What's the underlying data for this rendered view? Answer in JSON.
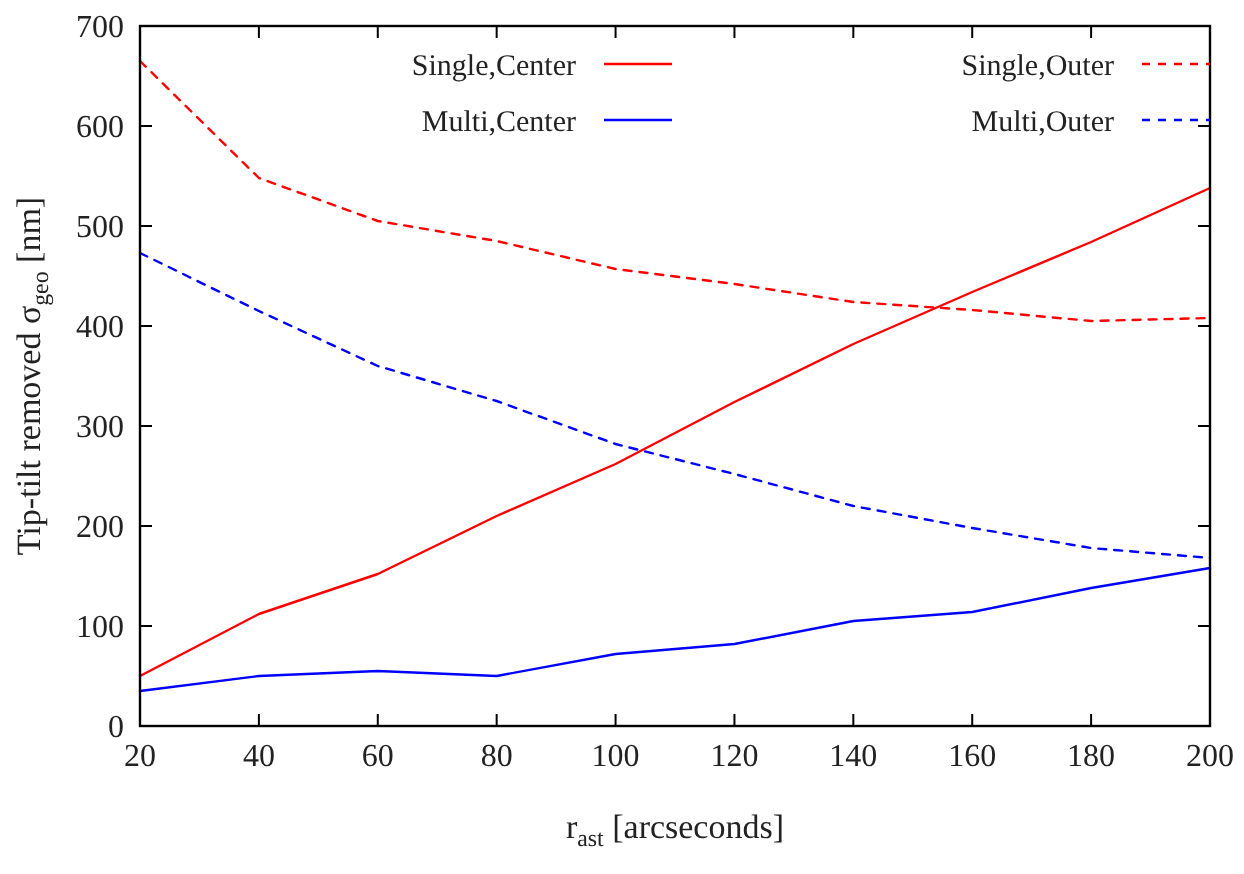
{
  "chart_data": {
    "type": "line",
    "xlabel": "r$_{ast}$ [arcseconds]",
    "ylabel": "Tip-tilt removed σ$_{geo}$ [nm]",
    "x": [
      20,
      40,
      60,
      80,
      100,
      120,
      140,
      160,
      180,
      200
    ],
    "xlim": [
      20,
      200
    ],
    "xticks": [
      20,
      40,
      60,
      80,
      100,
      120,
      140,
      160,
      180,
      200
    ],
    "ylim": [
      0,
      700
    ],
    "yticks": [
      0,
      100,
      200,
      300,
      400,
      500,
      600,
      700
    ],
    "grid": false,
    "legend": "top",
    "marker": "none",
    "series": [
      {
        "name": "Single,Center",
        "color": "#ff0000",
        "line_style": "solid",
        "values": [
          50,
          112,
          152,
          210,
          262,
          324,
          382,
          434,
          484,
          538
        ]
      },
      {
        "name": "Single,Outer",
        "color": "#ff0000",
        "line_style": "dashed",
        "values": [
          665,
          548,
          505,
          485,
          457,
          442,
          424,
          416,
          405,
          408
        ]
      },
      {
        "name": "Multi,Center",
        "color": "#0000ff",
        "line_style": "solid",
        "values": [
          35,
          50,
          55,
          50,
          72,
          82,
          105,
          114,
          138,
          158
        ]
      },
      {
        "name": "Multi,Outer",
        "color": "#0000ff",
        "line_style": "dashed",
        "values": [
          473,
          415,
          360,
          325,
          282,
          252,
          220,
          198,
          178,
          168
        ]
      }
    ]
  }
}
